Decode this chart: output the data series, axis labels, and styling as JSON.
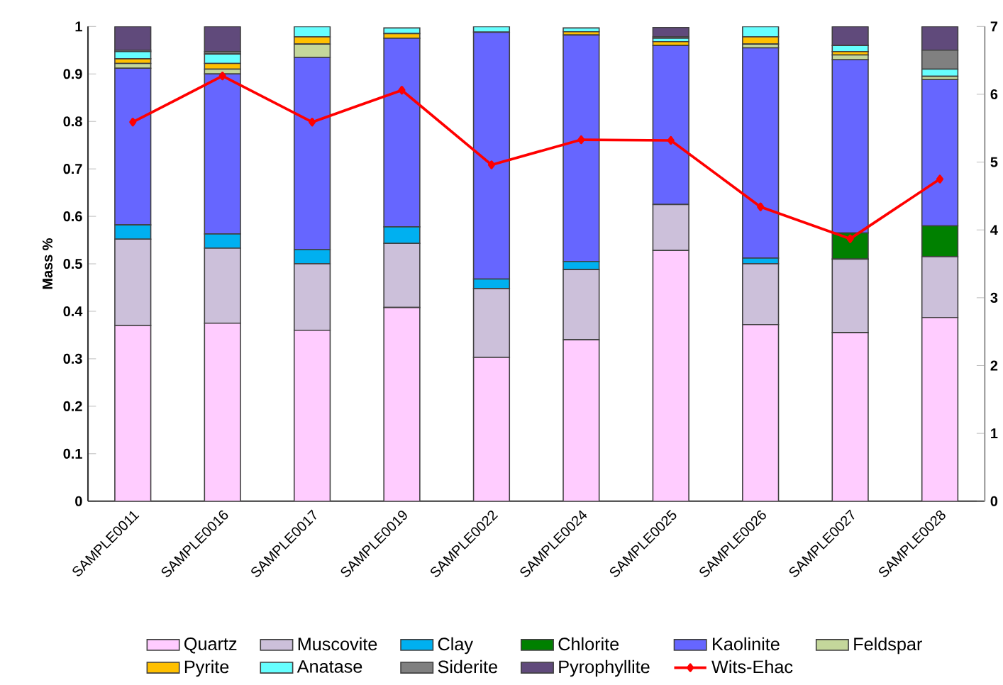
{
  "chart_data": {
    "type": "bar",
    "stacked": true,
    "ylabel": "Mass %",
    "categories": [
      "SAMPLE0011",
      "SAMPLE0016",
      "SAMPLE0017",
      "SAMPLE0019",
      "SAMPLE0022",
      "SAMPLE0024",
      "SAMPLE0025",
      "SAMPLE0026",
      "SAMPLE0027",
      "SAMPLE0028"
    ],
    "series": [
      {
        "name": "Quartz",
        "color": "#ffccff",
        "values": [
          0.37,
          0.375,
          0.36,
          0.408,
          0.303,
          0.34,
          0.528,
          0.372,
          0.355,
          0.387
        ]
      },
      {
        "name": "Muscovite",
        "color": "#ccc0da",
        "values": [
          0.182,
          0.158,
          0.14,
          0.135,
          0.145,
          0.148,
          0.097,
          0.128,
          0.155,
          0.128
        ]
      },
      {
        "name": "Clay",
        "color": "#00b0f0",
        "values": [
          0.03,
          0.03,
          0.03,
          0.035,
          0.02,
          0.017,
          0,
          0.012,
          0,
          0
        ]
      },
      {
        "name": "Chlorite",
        "color": "#008000",
        "values": [
          0,
          0,
          0,
          0,
          0,
          0,
          0,
          0,
          0.055,
          0.065
        ]
      },
      {
        "name": "Kaolinite",
        "color": "#6666ff",
        "values": [
          0.33,
          0.337,
          0.405,
          0.397,
          0.52,
          0.477,
          0.335,
          0.443,
          0.365,
          0.308
        ]
      },
      {
        "name": "Feldspar",
        "color": "#c4d79b",
        "values": [
          0.01,
          0.01,
          0.028,
          null,
          0,
          null,
          null,
          0.008,
          0.01,
          0.007
        ]
      },
      {
        "name": "Pyrite",
        "color": "#ffc000",
        "values": [
          0.01,
          0.012,
          0.015,
          0.01,
          0,
          0.007,
          0.008,
          0.015,
          0.007,
          0
        ]
      },
      {
        "name": "Anatase",
        "color": "#66ffff",
        "values": [
          0.015,
          0.02,
          0.022,
          0.012,
          0.012,
          0.008,
          0.007,
          0.022,
          0.013,
          0.015
        ]
      },
      {
        "name": "Siderite",
        "color": "#808080",
        "values": [
          0.003,
          0.005,
          0,
          0,
          0,
          0,
          0.003,
          0,
          0,
          0.04
        ]
      },
      {
        "name": "Pyrophyllite",
        "color": "#604a7b",
        "values": [
          0.05,
          0.053,
          0,
          0,
          0,
          0,
          0.02,
          0,
          0.04,
          0.05
        ]
      },
      {
        "name": "Wits-Ehac",
        "type": "line",
        "axis": "y2",
        "color": "#ff0000",
        "values": [
          5.59,
          6.27,
          5.59,
          6.06,
          4.96,
          5.33,
          5.32,
          4.34,
          3.87,
          4.75
        ]
      }
    ],
    "ylim": [
      0,
      1
    ],
    "yticks": [
      0,
      0.1,
      0.2,
      0.3,
      0.4,
      0.5,
      0.6,
      0.7,
      0.8,
      0.9,
      1
    ],
    "y2lim": [
      0,
      7
    ],
    "y2ticks": [
      0,
      1,
      2,
      3,
      4,
      5,
      6,
      7
    ],
    "legend": "bottom",
    "marker": "diamond",
    "line_style": "solid"
  }
}
